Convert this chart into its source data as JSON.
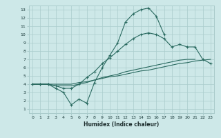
{
  "xlabel": "Humidex (Indice chaleur)",
  "bg_color": "#cde8e8",
  "grid_color": "#aacccc",
  "line_color": "#2a6a60",
  "xlim": [
    -0.5,
    23.5
  ],
  "ylim": [
    0.5,
    13.5
  ],
  "x_ticks": [
    0,
    1,
    2,
    3,
    4,
    5,
    6,
    7,
    8,
    9,
    10,
    11,
    12,
    13,
    14,
    15,
    16,
    17,
    18,
    19,
    20,
    21,
    22,
    23
  ],
  "y_ticks": [
    1,
    2,
    3,
    4,
    5,
    6,
    7,
    8,
    9,
    10,
    11,
    12,
    13
  ],
  "line1_y": [
    4,
    4,
    4,
    3.5,
    3.0,
    1.5,
    2.2,
    1.7,
    4.2,
    6.0,
    7.5,
    9.0,
    11.5,
    12.5,
    13.0,
    13.2,
    12.2,
    10.0,
    null,
    null,
    null,
    null,
    null,
    null
  ],
  "line2_y": [
    4,
    4,
    4,
    3.8,
    3.5,
    3.5,
    4.0,
    4.8,
    5.5,
    6.5,
    7.2,
    8.0,
    8.8,
    9.5,
    10.0,
    10.2,
    10.0,
    9.5,
    8.5,
    8.8,
    8.5,
    8.5,
    7.0,
    6.5
  ],
  "line3_y": [
    4,
    4,
    4,
    3.8,
    3.8,
    3.8,
    4.0,
    4.2,
    4.5,
    4.8,
    5.0,
    5.2,
    5.5,
    5.7,
    5.9,
    6.1,
    6.3,
    6.5,
    6.7,
    6.9,
    7.0,
    7.0,
    null,
    null
  ],
  "line4_y": [
    4,
    4,
    4,
    4.0,
    4.0,
    4.0,
    4.2,
    4.3,
    4.5,
    4.7,
    4.9,
    5.0,
    5.2,
    5.4,
    5.6,
    5.7,
    5.9,
    6.1,
    6.3,
    6.5,
    6.6,
    6.8,
    6.9,
    7.0
  ]
}
